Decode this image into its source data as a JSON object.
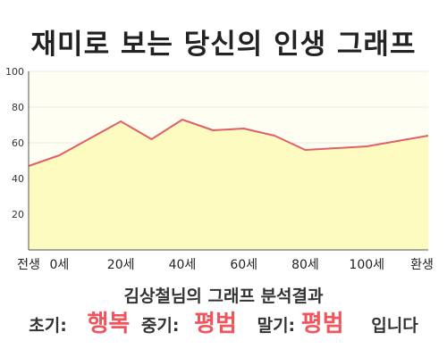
{
  "title": "재미로 보는 당신의 인생 그래프",
  "result_heading": "김상철님의 그래프 분석결과",
  "result": {
    "early_label": "초기:",
    "early_value": "행복",
    "mid_label": "중기:",
    "mid_value": "평범",
    "late_label": "말기:",
    "late_value": "평범",
    "suffix": "입니다"
  },
  "colors": {
    "line": "#e0606a",
    "fill": "#fdfbc0",
    "plot_background": "#fffef2",
    "grid": "#e8e8e8",
    "highlight": "#f2545b"
  },
  "chart_data": {
    "type": "area",
    "title": "재미로 보는 당신의 인생 그래프",
    "xlabel": "",
    "ylabel": "",
    "x_categories": [
      "전생",
      "0세",
      "20세",
      "40세",
      "60세",
      "80세",
      "100세",
      "환생"
    ],
    "y_ticks": [
      20,
      40,
      60,
      80,
      100
    ],
    "ylim": [
      0,
      100
    ],
    "grid": true,
    "x": [
      "전생",
      "0세",
      "10세",
      "20세",
      "30세",
      "40세",
      "50세",
      "60세",
      "70세",
      "80세",
      "90세",
      "100세",
      "110세",
      "환생"
    ],
    "values": [
      47,
      53,
      null,
      72,
      62,
      73,
      67,
      68,
      64,
      56,
      57,
      58,
      61,
      64
    ],
    "series": [
      {
        "points": [
          {
            "x": "전생",
            "y": 47
          },
          {
            "x": "0세",
            "y": 53
          },
          {
            "x": "20세",
            "y": 72
          },
          {
            "x": "30세",
            "y": 62
          },
          {
            "x": "40세",
            "y": 73
          },
          {
            "x": "50세",
            "y": 67
          },
          {
            "x": "60세",
            "y": 68
          },
          {
            "x": "70세",
            "y": 64
          },
          {
            "x": "80세",
            "y": 56
          },
          {
            "x": "90세",
            "y": 57
          },
          {
            "x": "100세",
            "y": 58
          },
          {
            "x": "110세",
            "y": 61
          },
          {
            "x": "환생",
            "y": 64
          }
        ]
      }
    ]
  }
}
